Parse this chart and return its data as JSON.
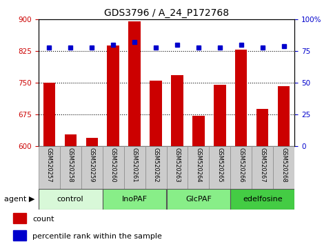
{
  "title": "GDS3796 / A_24_P172768",
  "samples": [
    "GSM520257",
    "GSM520258",
    "GSM520259",
    "GSM520260",
    "GSM520261",
    "GSM520262",
    "GSM520263",
    "GSM520264",
    "GSM520265",
    "GSM520266",
    "GSM520267",
    "GSM520268"
  ],
  "counts": [
    750,
    628,
    620,
    838,
    895,
    755,
    768,
    672,
    745,
    828,
    688,
    742
  ],
  "percentiles": [
    78,
    78,
    78,
    80,
    82,
    78,
    80,
    78,
    78,
    80,
    78,
    79
  ],
  "ylim_left": [
    600,
    900
  ],
  "ylim_right": [
    0,
    100
  ],
  "yticks_left": [
    600,
    675,
    750,
    825,
    900
  ],
  "yticks_right": [
    0,
    25,
    50,
    75,
    100
  ],
  "groups": [
    {
      "label": "control",
      "start": 0,
      "end": 3,
      "color": "#d8f8d8"
    },
    {
      "label": "InoPAF",
      "start": 3,
      "end": 6,
      "color": "#88ee88"
    },
    {
      "label": "GlcPAF",
      "start": 6,
      "end": 9,
      "color": "#88ee88"
    },
    {
      "label": "edelfosine",
      "start": 9,
      "end": 12,
      "color": "#44cc44"
    }
  ],
  "bar_color": "#cc0000",
  "dot_color": "#0000cc",
  "bar_width": 0.55,
  "grid_color": "black",
  "tick_label_color_left": "#cc0000",
  "tick_label_color_right": "#0000cc",
  "legend_count_label": "count",
  "legend_pct_label": "percentile rank within the sample",
  "sample_box_color": "#cccccc",
  "sample_box_edge": "#888888",
  "agent_arrow": "agent ▶"
}
